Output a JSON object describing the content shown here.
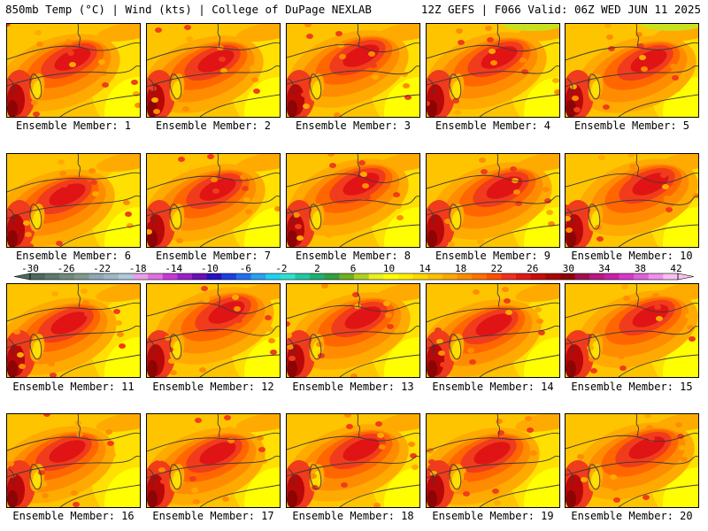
{
  "header": {
    "left": "850mb Temp (°C) | Wind (kts) | College of DuPage NEXLAB",
    "right": "12Z GEFS | F066 Valid: 06Z WED JUN 11 2025"
  },
  "members": [
    {
      "label": "Ensemble Member: 1"
    },
    {
      "label": "Ensemble Member: 2"
    },
    {
      "label": "Ensemble Member: 3"
    },
    {
      "label": "Ensemble Member: 4"
    },
    {
      "label": "Ensemble Member: 5"
    },
    {
      "label": "Ensemble Member: 6"
    },
    {
      "label": "Ensemble Member: 7"
    },
    {
      "label": "Ensemble Member: 8"
    },
    {
      "label": "Ensemble Member: 9"
    },
    {
      "label": "Ensemble Member: 10"
    },
    {
      "label": "Ensemble Member: 11"
    },
    {
      "label": "Ensemble Member: 12"
    },
    {
      "label": "Ensemble Member: 13"
    },
    {
      "label": "Ensemble Member: 14"
    },
    {
      "label": "Ensemble Member: 15"
    },
    {
      "label": "Ensemble Member: 16"
    },
    {
      "label": "Ensemble Member: 17"
    },
    {
      "label": "Ensemble Member: 18"
    },
    {
      "label": "Ensemble Member: 19"
    },
    {
      "label": "Ensemble Member: 20"
    }
  ],
  "colorbar": {
    "tick_labels": [
      "-30",
      "-26",
      "-22",
      "-18",
      "-14",
      "-10",
      "-6",
      "-2",
      "2",
      "6",
      "10",
      "14",
      "18",
      "22",
      "26",
      "30",
      "34",
      "38",
      "42"
    ],
    "colors": [
      "#4a6a5c",
      "#5e7a6c",
      "#6f8a7c",
      "#7f9a8c",
      "#8fa8b4",
      "#9fb8c8",
      "#b0c8dc",
      "#e8a0e8",
      "#e070e0",
      "#c838d8",
      "#9a20c8",
      "#6a10b8",
      "#2a10c0",
      "#1a40e0",
      "#2070f0",
      "#2aa0f0",
      "#20d0f0",
      "#30e0d0",
      "#20c8a0",
      "#20b070",
      "#30a040",
      "#70b020",
      "#b0d020",
      "#e8f020",
      "#ffff00",
      "#fff000",
      "#ffd800",
      "#ffc000",
      "#ffa800",
      "#ff8c00",
      "#ff7000",
      "#ff5000",
      "#f03020",
      "#e01818",
      "#c80c0c",
      "#a80808",
      "#8c0404",
      "#a01050",
      "#b81880",
      "#c820a8",
      "#d838c8",
      "#e060d8",
      "#f090e8",
      "#f8c0f0"
    ]
  },
  "map_colors": {
    "t14": "#ffff00",
    "t16": "#ffe000",
    "t18": "#ffc400",
    "t20": "#ffaa00",
    "t22": "#ff8c00",
    "t24": "#ff6600",
    "t26": "#f03c1c",
    "t28": "#e01414",
    "t30": "#b80808",
    "t32": "#8c0404",
    "cool": "#c8e020",
    "contour": "#3a3a3a"
  }
}
